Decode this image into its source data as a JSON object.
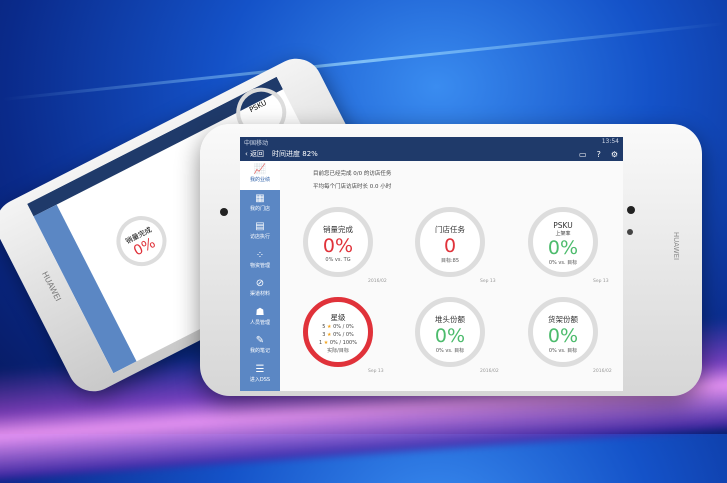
{
  "colors": {
    "header": "#1f3a6a",
    "sidebar": "#5b87c4",
    "red": "#e0323a",
    "green": "#4cbb6c",
    "gray": "#dddddd"
  },
  "brand": "HUAWEI",
  "status": {
    "carrier": "中国移动",
    "time": "13:54"
  },
  "header": {
    "back": "返回",
    "progress": "时间进度 82%",
    "icons": [
      "message-icon",
      "help-icon",
      "settings-icon"
    ]
  },
  "sidebar": [
    {
      "label": "我的业绩",
      "icon": "chart-icon",
      "active": true
    },
    {
      "label": "我的门店",
      "icon": "store-icon"
    },
    {
      "label": "访店执行",
      "icon": "clipboard-icon"
    },
    {
      "label": "物资管理",
      "icon": "grid-icon"
    },
    {
      "label": "渠道材料",
      "icon": "paperclip-icon"
    },
    {
      "label": "人员管理",
      "icon": "people-icon"
    },
    {
      "label": "我的笔记",
      "icon": "note-icon"
    },
    {
      "label": "进入DSS",
      "icon": "list-icon"
    }
  ],
  "messages": [
    "目前您已经完成 0/0 的访店任务",
    "平均每个门店访店时长 0.0 小时"
  ],
  "cards": [
    {
      "title": "销量完成",
      "value": "0%",
      "footer": "0% vs. TG",
      "date": "2016/02",
      "color": "red"
    },
    {
      "title": "门店任务",
      "value": "0",
      "footer": "目标:85",
      "date": "Sep 13",
      "color": "red"
    },
    {
      "title": "PSKU",
      "sub": "上架率",
      "value": "0%",
      "footer": "0% vs. 目标",
      "date": "Sep 13",
      "color": "green"
    },
    {
      "title": "星级",
      "rows": [
        {
          "n": "5",
          "v": "0% / 0%"
        },
        {
          "n": "3",
          "v": "0% / 0%"
        },
        {
          "n": "1",
          "v": "0% / 100%"
        }
      ],
      "footer": "实际/目标",
      "date": "Sep 13"
    },
    {
      "title": "堆头份额",
      "value": "0%",
      "footer": "0% vs. 目标",
      "date": "2016/02",
      "color": "green"
    },
    {
      "title": "货架份额",
      "value": "0%",
      "footer": "0% vs. 目标",
      "date": "2016/02",
      "color": "green"
    }
  ]
}
